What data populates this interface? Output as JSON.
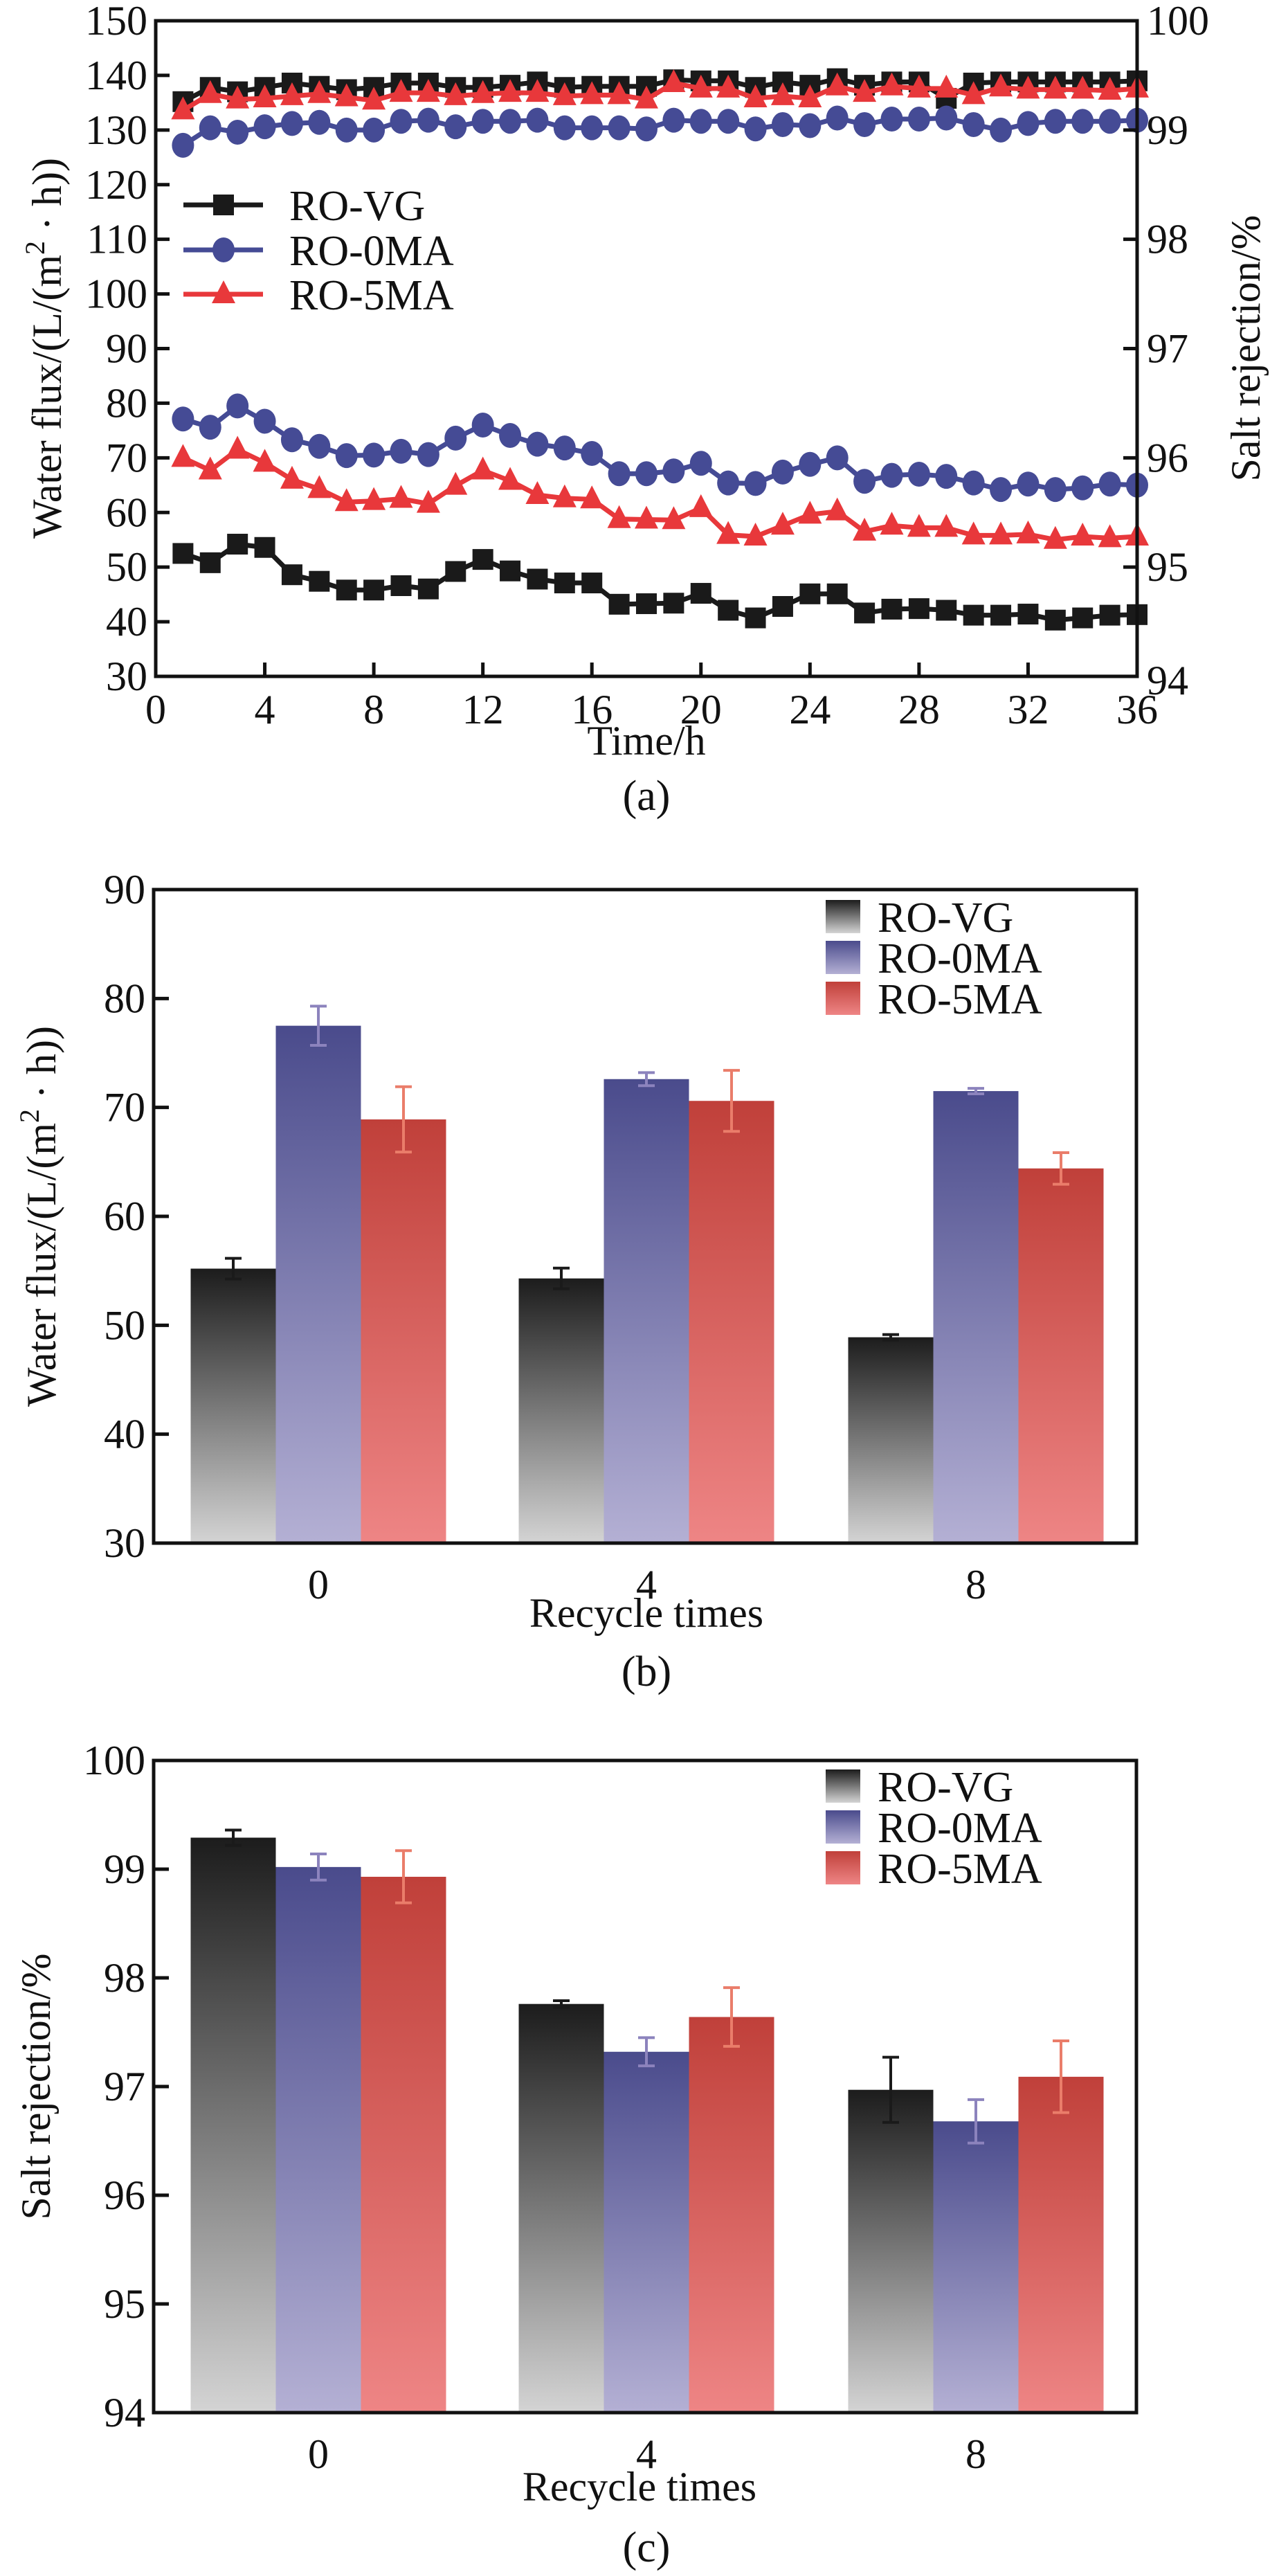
{
  "figure": {
    "panel_labels": [
      "(a)",
      "(b)",
      "(c)"
    ]
  },
  "series_styles": {
    "RO-VG": {
      "color": "#1a1a1a",
      "marker": "square",
      "bar_top": "#1c1c1c",
      "bar_bottom": "#d4d4d4",
      "err_color": "#1a1a1a"
    },
    "RO-0MA": {
      "color": "#454b95",
      "marker": "circle",
      "bar_top": "#4a4b8c",
      "bar_bottom": "#b4b0d4",
      "err_color": "#8c83bd"
    },
    "RO-5MA": {
      "color": "#e8383b",
      "marker": "triangle",
      "bar_top": "#c0403a",
      "bar_bottom": "#ee8585",
      "err_color": "#ea7d6a"
    }
  },
  "chart_data": [
    {
      "id": "a",
      "type": "line",
      "title": "",
      "panel_label": "(a)",
      "xlabel": "Time/h",
      "ylabel": "Water flux/(L/(m² · h))",
      "ylabel_parts": {
        "before": "Water flux/(L/(m",
        "sup": "2",
        "after": " · h))"
      },
      "y2label": "Salt rejection/%",
      "xlim": [
        0,
        36
      ],
      "ylim": [
        30,
        150
      ],
      "y2lim": [
        94,
        100
      ],
      "xticks": [
        0,
        4,
        8,
        12,
        16,
        20,
        24,
        28,
        32,
        36
      ],
      "yticks": [
        30,
        40,
        50,
        60,
        70,
        80,
        90,
        100,
        110,
        120,
        130,
        140,
        150
      ],
      "y2ticks": [
        94,
        95,
        96,
        97,
        98,
        99,
        100
      ],
      "grid": false,
      "legend": {
        "placement": "center-left",
        "entries": [
          "RO-VG",
          "RO-0MA",
          "RO-5MA"
        ]
      },
      "x": [
        1,
        2,
        3,
        4,
        5,
        6,
        7,
        8,
        9,
        10,
        11,
        12,
        13,
        14,
        15,
        16,
        17,
        18,
        19,
        20,
        21,
        22,
        23,
        24,
        25,
        26,
        27,
        28,
        29,
        30,
        31,
        32,
        33,
        34,
        35,
        36
      ],
      "series": [
        {
          "name": "RO-VG",
          "axis": "left",
          "quantity": "Water flux",
          "values": [
            52.5,
            50.8,
            54.2,
            53.6,
            48.6,
            47.4,
            45.8,
            45.8,
            46.6,
            46.0,
            49.2,
            51.4,
            49.3,
            47.8,
            47.1,
            47.1,
            43.2,
            43.3,
            43.4,
            45.2,
            42.1,
            40.7,
            42.8,
            45.1,
            45.1,
            41.6,
            42.3,
            42.4,
            42.1,
            41.2,
            41.2,
            41.4,
            40.3,
            40.7,
            41.2,
            41.3
          ]
        },
        {
          "name": "RO-0MA",
          "axis": "left",
          "quantity": "Water flux",
          "values": [
            77.1,
            75.6,
            79.5,
            76.7,
            73.3,
            72.1,
            70.4,
            70.5,
            71.2,
            70.6,
            73.6,
            76.0,
            74.1,
            72.5,
            71.8,
            70.8,
            67.1,
            67.1,
            67.6,
            69.0,
            65.4,
            65.3,
            67.4,
            68.8,
            70.0,
            65.7,
            66.8,
            67.0,
            66.6,
            65.4,
            64.2,
            65.2,
            64.2,
            64.5,
            65.2,
            65.0
          ]
        },
        {
          "name": "RO-5MA",
          "axis": "left",
          "quantity": "Water flux",
          "values": [
            70.0,
            67.7,
            71.5,
            69.1,
            66.0,
            64.3,
            61.9,
            62.1,
            62.5,
            61.6,
            64.9,
            67.7,
            65.8,
            63.2,
            62.6,
            62.4,
            58.8,
            58.7,
            58.6,
            60.8,
            55.9,
            55.6,
            57.6,
            59.6,
            60.2,
            56.5,
            57.6,
            57.2,
            57.2,
            55.8,
            55.8,
            56.0,
            55.0,
            55.6,
            55.3,
            55.6
          ]
        },
        {
          "name": "RO-VG",
          "axis": "right",
          "quantity": "Salt rejection",
          "values": [
            99.26,
            99.39,
            99.35,
            99.39,
            99.43,
            99.4,
            99.37,
            99.39,
            99.43,
            99.43,
            99.39,
            99.39,
            99.41,
            99.44,
            99.39,
            99.4,
            99.4,
            99.4,
            99.46,
            99.45,
            99.45,
            99.39,
            99.44,
            99.41,
            99.47,
            99.41,
            99.44,
            99.44,
            99.29,
            99.43,
            99.44,
            99.44,
            99.44,
            99.44,
            99.44,
            99.45
          ]
        },
        {
          "name": "RO-0MA",
          "axis": "right",
          "quantity": "Salt rejection",
          "values": [
            98.86,
            99.02,
            98.98,
            99.03,
            99.06,
            99.07,
            99.0,
            99.0,
            99.08,
            99.09,
            99.03,
            99.08,
            99.08,
            99.09,
            99.02,
            99.02,
            99.02,
            99.01,
            99.09,
            99.08,
            99.08,
            99.01,
            99.05,
            99.04,
            99.11,
            99.05,
            99.1,
            99.1,
            99.11,
            99.05,
            99.0,
            99.06,
            99.08,
            99.08,
            99.08,
            99.09
          ]
        },
        {
          "name": "RO-5MA",
          "axis": "right",
          "quantity": "Salt rejection",
          "values": [
            99.18,
            99.33,
            99.28,
            99.29,
            99.31,
            99.33,
            99.3,
            99.27,
            99.34,
            99.34,
            99.31,
            99.33,
            99.34,
            99.34,
            99.31,
            99.32,
            99.32,
            99.28,
            99.43,
            99.38,
            99.38,
            99.29,
            99.31,
            99.29,
            99.4,
            99.34,
            99.4,
            99.38,
            99.38,
            99.32,
            99.39,
            99.37,
            99.37,
            99.37,
            99.36,
            99.38
          ]
        }
      ]
    },
    {
      "id": "b",
      "type": "bar",
      "title": "",
      "panel_label": "(b)",
      "xlabel": "Recycle times",
      "ylabel": "Water flux/(L/(m² · h))",
      "ylabel_parts": {
        "before": "Water flux/(L/(m",
        "sup": "2",
        "after": " · h))"
      },
      "categories": [
        "0",
        "4",
        "8"
      ],
      "ylim": [
        30,
        90
      ],
      "yticks": [
        30,
        40,
        50,
        60,
        70,
        80,
        90
      ],
      "grid": false,
      "legend": {
        "placement": "top-right",
        "entries": [
          "RO-VG",
          "RO-0MA",
          "RO-5MA"
        ]
      },
      "series": [
        {
          "name": "RO-VG",
          "values": [
            55.2,
            54.3,
            48.9
          ],
          "errors": [
            0.95,
            0.95,
            0.25
          ]
        },
        {
          "name": "RO-0MA",
          "values": [
            77.5,
            72.6,
            71.5
          ],
          "errors": [
            1.8,
            0.6,
            0.25
          ]
        },
        {
          "name": "RO-5MA",
          "values": [
            68.9,
            70.6,
            64.4
          ],
          "errors": [
            3.0,
            2.8,
            1.45
          ]
        }
      ]
    },
    {
      "id": "c",
      "type": "bar",
      "title": "",
      "panel_label": "(c)",
      "xlabel": "Recycle times",
      "ylabel": "Salt rejection/%",
      "categories": [
        "0",
        "4",
        "8"
      ],
      "ylim": [
        94,
        100
      ],
      "yticks": [
        94,
        95,
        96,
        97,
        98,
        99,
        100
      ],
      "grid": false,
      "legend": {
        "placement": "top-right",
        "entries": [
          "RO-VG",
          "RO-0MA",
          "RO-5MA"
        ]
      },
      "series": [
        {
          "name": "RO-VG",
          "values": [
            99.29,
            97.76,
            96.97
          ],
          "errors": [
            0.07,
            0.03,
            0.3
          ]
        },
        {
          "name": "RO-0MA",
          "values": [
            99.02,
            97.32,
            96.68
          ],
          "errors": [
            0.12,
            0.13,
            0.2
          ]
        },
        {
          "name": "RO-5MA",
          "values": [
            98.93,
            97.64,
            97.09
          ],
          "errors": [
            0.24,
            0.27,
            0.33
          ]
        }
      ]
    }
  ]
}
